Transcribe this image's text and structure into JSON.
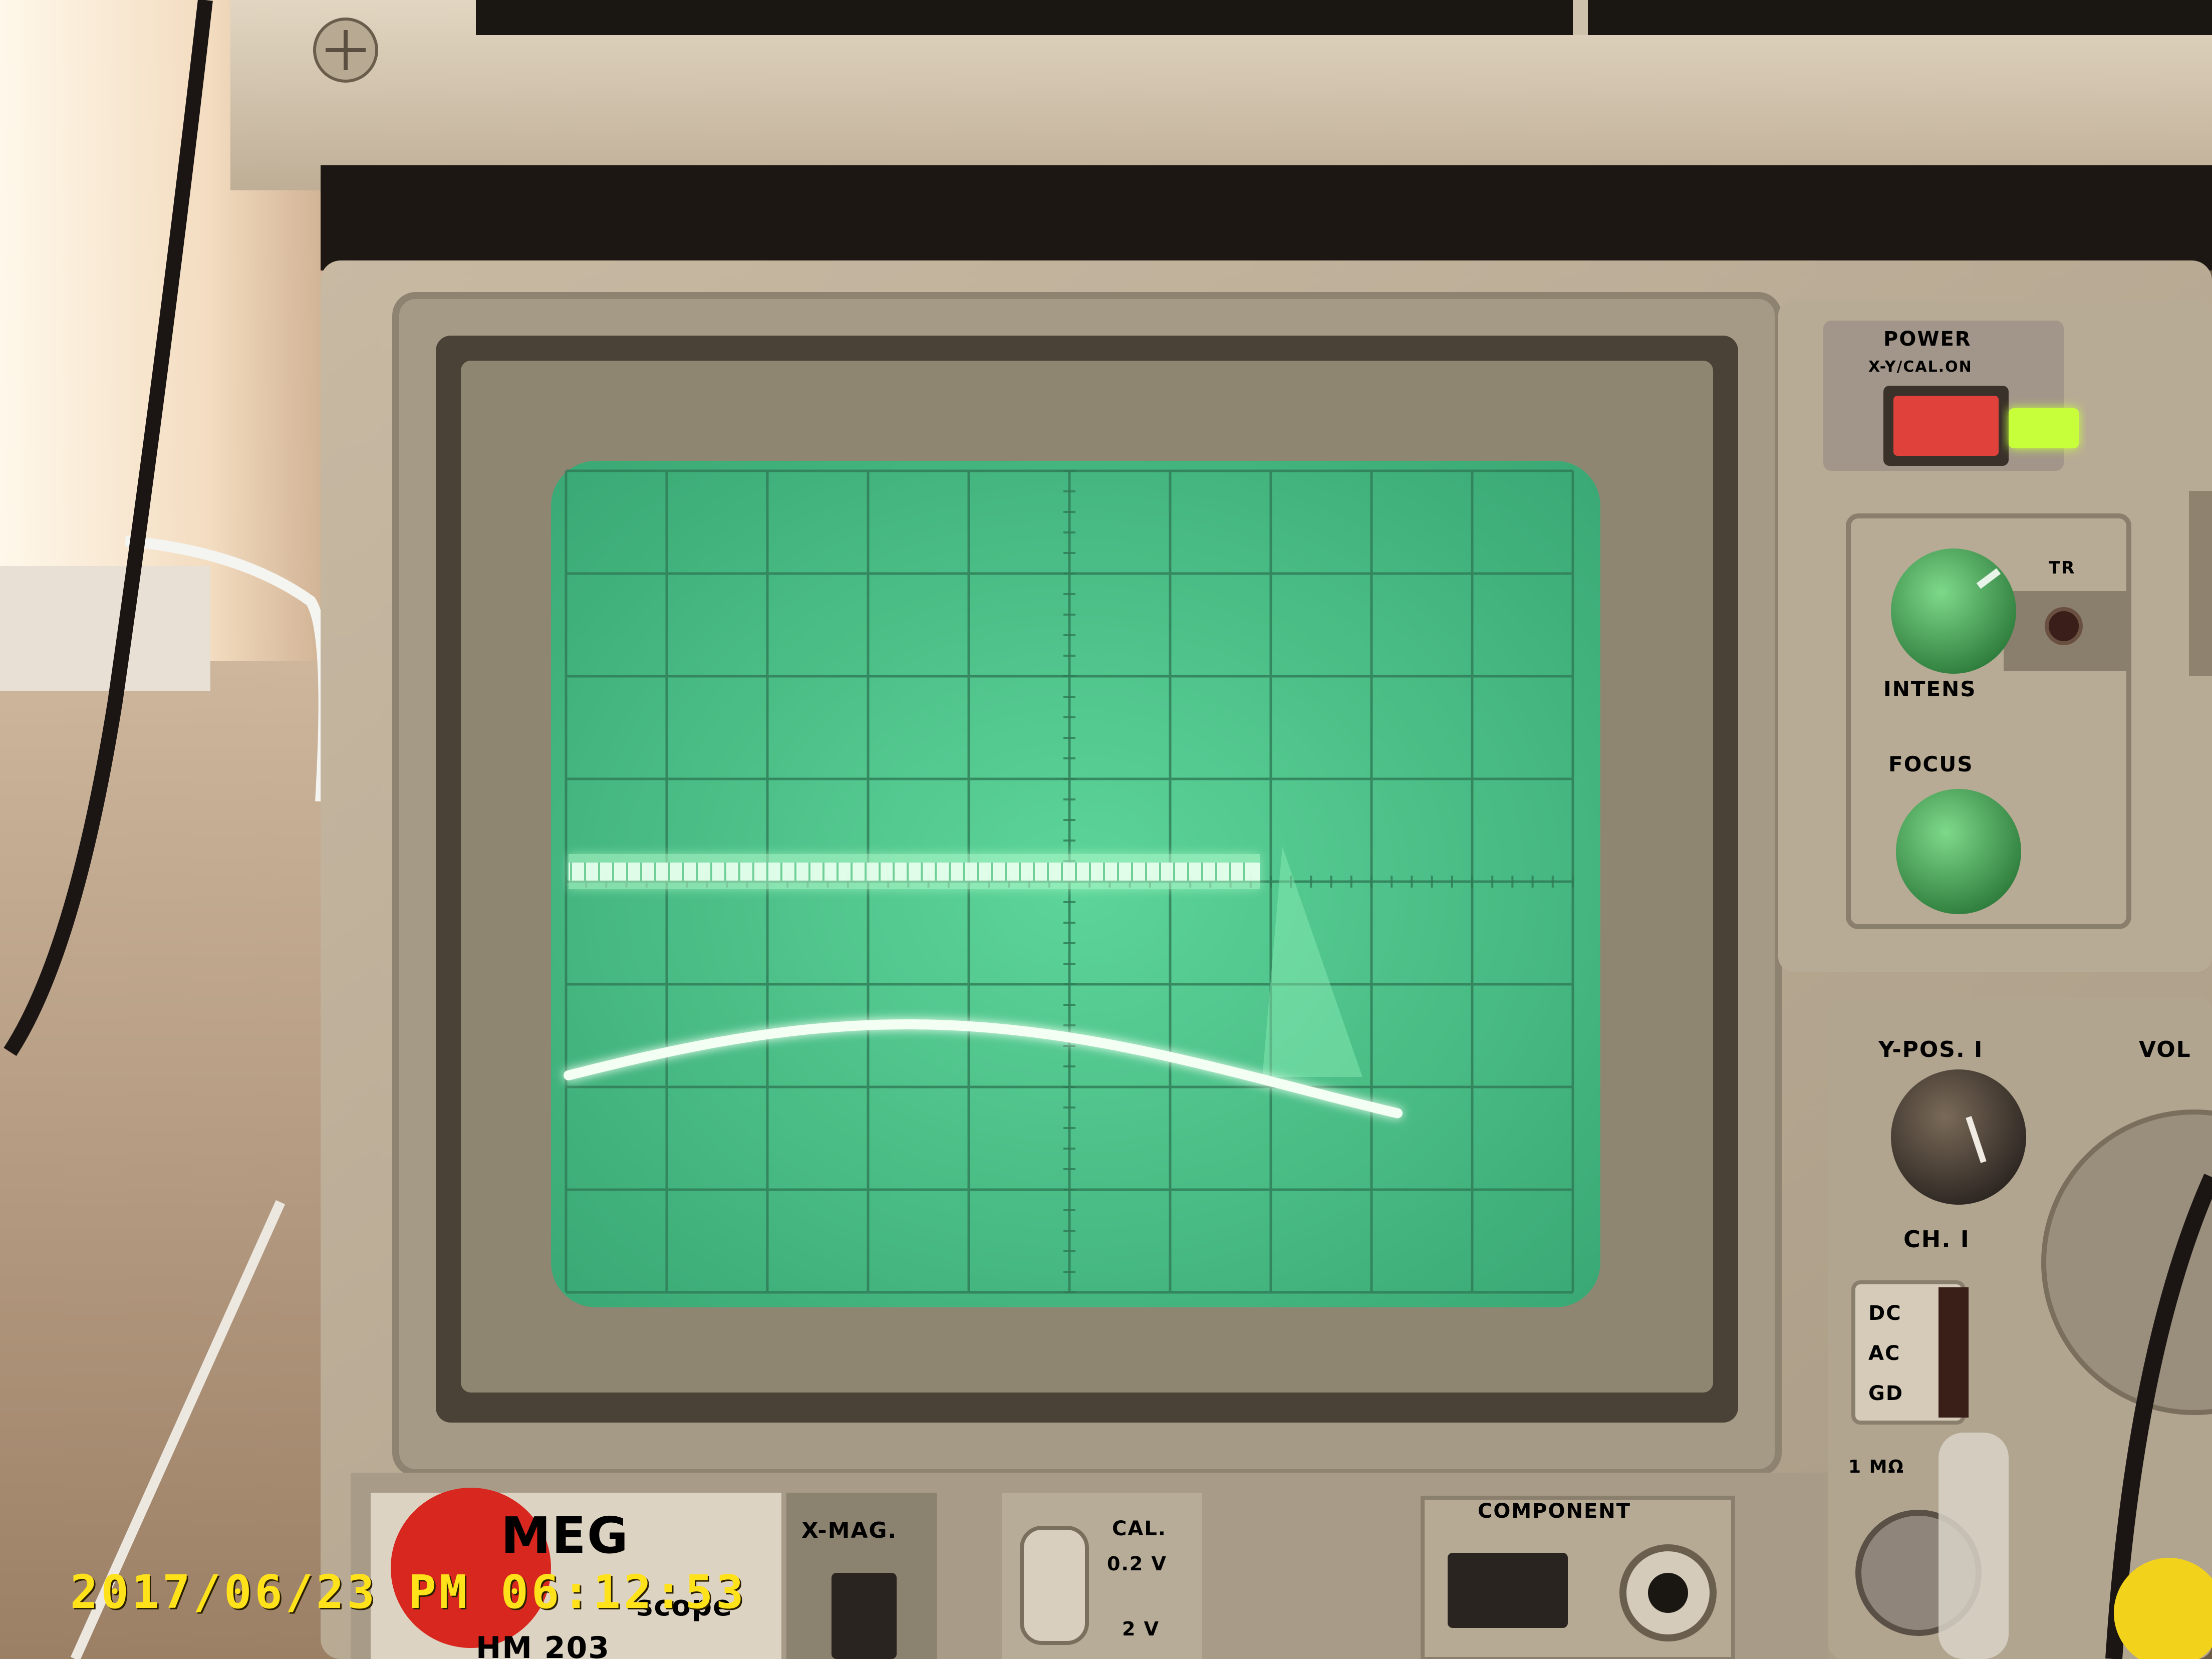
{
  "panel": {
    "power_label": "POWER",
    "power_sub_label": "X-Y/CAL.ON",
    "tr_label": "TR",
    "intens_label": "INTENS",
    "focus_label": "FOCUS",
    "ypos_label": "Y-POS. I",
    "volts_label": "VOL",
    "ch_label": "CH. I",
    "coupling": [
      "DC",
      "AC",
      "GD"
    ],
    "imp_label": "1 MΩ",
    "brand_label": "MEG",
    "model_label": "HM 203",
    "scope_word": "scope",
    "xmag_label": "X-MAG.",
    "cal_label": "CAL.",
    "cal_values": [
      "0.2 V",
      "2 V"
    ],
    "component_label": "COMPONENT"
  },
  "colors": {
    "screen": "#4fc98a",
    "trace": "#f2fff2",
    "bezel": "#b5aa94",
    "led": "#c8ff3a",
    "timestamp": "#ffe21a"
  },
  "timestamp": "2017/06/23 PM 06:12:53"
}
